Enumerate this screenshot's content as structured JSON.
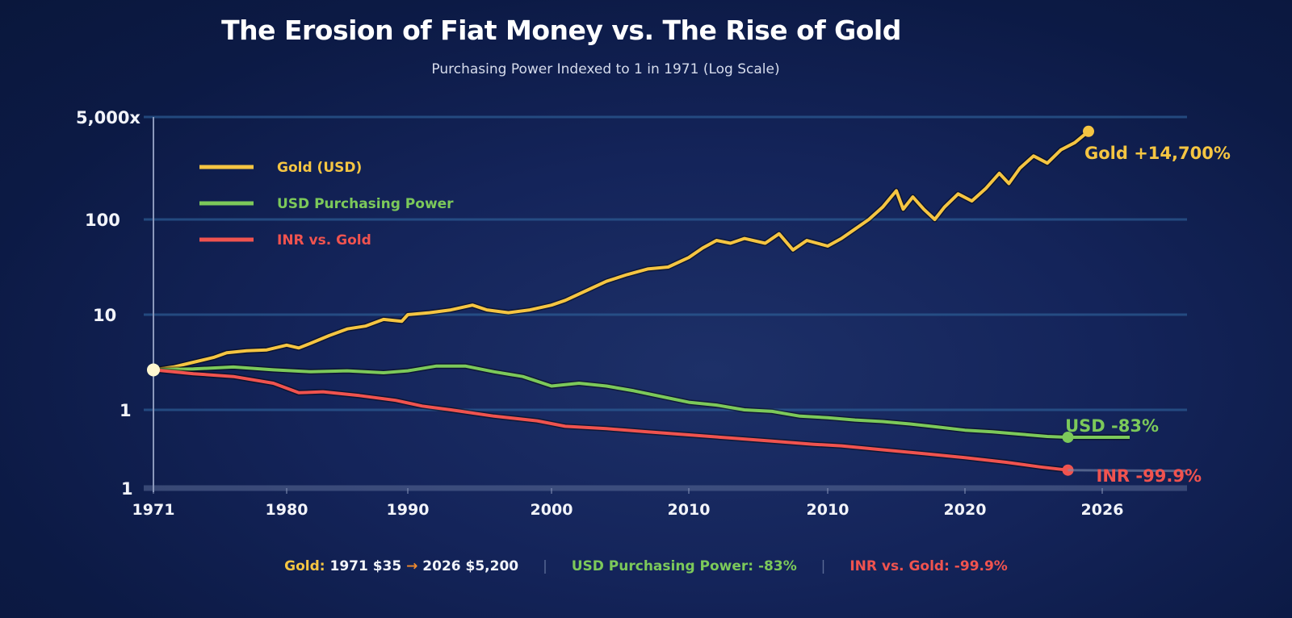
{
  "chart_data": {
    "type": "line",
    "title": "The Erosion of Fiat Money vs. The Rise of Gold",
    "subtitle": "Purchasing Power Indexed to 1 in 1971 (Log Scale)",
    "xlabel": "",
    "ylabel": "",
    "x_tick_labels": [
      "1971",
      "1980",
      "1990",
      "2000",
      "2010",
      "2010",
      "2020",
      "2026"
    ],
    "y_tick_labels": [
      "5,000x",
      "100",
      "10",
      "1",
      "1"
    ],
    "y_scale": "log",
    "grid": true,
    "legend_position": "top-left",
    "note": "Values read along the displayed axis; y given as tick index level (0 = bottom '1', 1 = '1', 2 = '10', 3 = '100', 4 = '5,000x'); x given as tick index position (0 = 1971 ... 7 = 2026)",
    "series": [
      {
        "name": "Gold (USD)",
        "color": "#f5c542",
        "end_label": "Gold +14,700%",
        "points": [
          [
            0,
            1.42
          ],
          [
            0.15,
            1.45
          ],
          [
            0.3,
            1.5
          ],
          [
            0.45,
            1.55
          ],
          [
            0.55,
            1.6
          ],
          [
            0.7,
            1.62
          ],
          [
            0.85,
            1.63
          ],
          [
            1.0,
            1.68
          ],
          [
            1.1,
            1.65
          ],
          [
            1.2,
            1.7
          ],
          [
            1.35,
            1.78
          ],
          [
            1.5,
            1.85
          ],
          [
            1.65,
            1.88
          ],
          [
            1.8,
            1.95
          ],
          [
            1.95,
            1.93
          ],
          [
            2.0,
            2.0
          ],
          [
            2.15,
            2.02
          ],
          [
            2.3,
            2.05
          ],
          [
            2.45,
            2.1
          ],
          [
            2.55,
            2.05
          ],
          [
            2.7,
            2.02
          ],
          [
            2.85,
            2.05
          ],
          [
            3.0,
            2.1
          ],
          [
            3.1,
            2.15
          ],
          [
            3.25,
            2.25
          ],
          [
            3.4,
            2.35
          ],
          [
            3.55,
            2.42
          ],
          [
            3.7,
            2.48
          ],
          [
            3.85,
            2.5
          ],
          [
            4.0,
            2.6
          ],
          [
            4.1,
            2.7
          ],
          [
            4.2,
            2.78
          ],
          [
            4.3,
            2.75
          ],
          [
            4.4,
            2.8
          ],
          [
            4.55,
            2.75
          ],
          [
            4.65,
            2.85
          ],
          [
            4.75,
            2.68
          ],
          [
            4.85,
            2.78
          ],
          [
            5.0,
            2.72
          ],
          [
            5.1,
            2.8
          ],
          [
            5.2,
            2.9
          ],
          [
            5.3,
            3.0
          ],
          [
            5.4,
            3.12
          ],
          [
            5.5,
            3.28
          ],
          [
            5.55,
            3.1
          ],
          [
            5.62,
            3.22
          ],
          [
            5.7,
            3.1
          ],
          [
            5.78,
            3.0
          ],
          [
            5.85,
            3.12
          ],
          [
            5.95,
            3.25
          ],
          [
            6.05,
            3.18
          ],
          [
            6.15,
            3.3
          ],
          [
            6.25,
            3.45
          ],
          [
            6.32,
            3.35
          ],
          [
            6.4,
            3.5
          ],
          [
            6.5,
            3.62
          ],
          [
            6.6,
            3.55
          ],
          [
            6.7,
            3.68
          ],
          [
            6.8,
            3.75
          ],
          [
            6.9,
            3.86
          ]
        ]
      },
      {
        "name": "USD Purchasing Power",
        "color": "#7cc95a",
        "end_label": "USD -83%",
        "points": [
          [
            0,
            1.42
          ],
          [
            0.3,
            1.43
          ],
          [
            0.6,
            1.45
          ],
          [
            0.9,
            1.42
          ],
          [
            1.2,
            1.4
          ],
          [
            1.5,
            1.41
          ],
          [
            1.8,
            1.39
          ],
          [
            2.0,
            1.41
          ],
          [
            2.2,
            1.46
          ],
          [
            2.4,
            1.46
          ],
          [
            2.6,
            1.4
          ],
          [
            2.8,
            1.35
          ],
          [
            3.0,
            1.25
          ],
          [
            3.2,
            1.28
          ],
          [
            3.4,
            1.25
          ],
          [
            3.6,
            1.2
          ],
          [
            3.8,
            1.14
          ],
          [
            4.0,
            1.08
          ],
          [
            4.2,
            1.05
          ],
          [
            4.4,
            1.0
          ],
          [
            4.6,
            0.98
          ],
          [
            4.8,
            0.92
          ],
          [
            5.0,
            0.9
          ],
          [
            5.2,
            0.87
          ],
          [
            5.4,
            0.85
          ],
          [
            5.6,
            0.82
          ],
          [
            5.8,
            0.78
          ],
          [
            6.0,
            0.74
          ],
          [
            6.2,
            0.72
          ],
          [
            6.4,
            0.69
          ],
          [
            6.6,
            0.66
          ],
          [
            6.75,
            0.65
          ],
          [
            7.2,
            0.65
          ]
        ]
      },
      {
        "name": "INR vs. Gold",
        "color": "#f0534f",
        "end_label": "INR -99.9%",
        "points": [
          [
            0,
            1.42
          ],
          [
            0.3,
            1.38
          ],
          [
            0.6,
            1.35
          ],
          [
            0.9,
            1.28
          ],
          [
            1.1,
            1.18
          ],
          [
            1.3,
            1.19
          ],
          [
            1.6,
            1.15
          ],
          [
            1.9,
            1.1
          ],
          [
            2.1,
            1.04
          ],
          [
            2.3,
            1.0
          ],
          [
            2.6,
            0.92
          ],
          [
            2.9,
            0.86
          ],
          [
            3.1,
            0.79
          ],
          [
            3.4,
            0.76
          ],
          [
            3.7,
            0.72
          ],
          [
            4.0,
            0.68
          ],
          [
            4.3,
            0.64
          ],
          [
            4.6,
            0.6
          ],
          [
            4.9,
            0.56
          ],
          [
            5.1,
            0.54
          ],
          [
            5.4,
            0.49
          ],
          [
            5.7,
            0.44
          ],
          [
            6.0,
            0.39
          ],
          [
            6.3,
            0.33
          ],
          [
            6.55,
            0.27
          ],
          [
            6.75,
            0.23
          ]
        ]
      }
    ]
  },
  "footer": {
    "gold_label": "Gold:",
    "gold_text": "1971 $35",
    "arrow": "→",
    "gold_text2": "2026 $5,200",
    "separator": "|",
    "usd_text": "USD Purchasing Power: -83%",
    "inr_text": "INR vs. Gold: -99.9%"
  }
}
